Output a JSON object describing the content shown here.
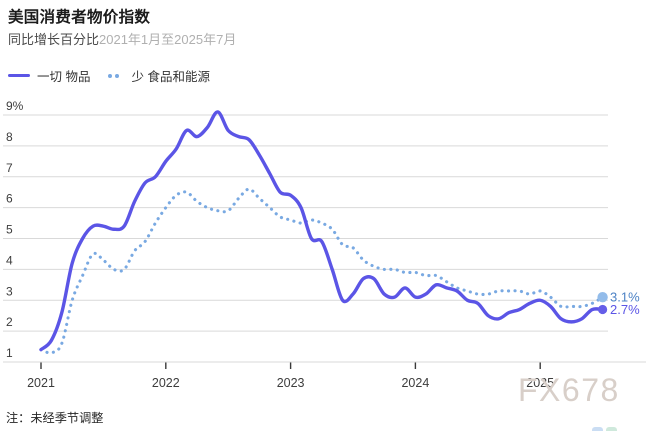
{
  "header": {
    "title": "美国消费者物价指数",
    "subtitle_prefix": "同比增长百分比",
    "subtitle_range": "2021年1月至2025年7月"
  },
  "legend": [
    {
      "label": "一切 物品",
      "style": "solid",
      "color": "#5b55e6"
    },
    {
      "label": "少 食品和能源",
      "style": "dotted",
      "color": "#79a9e2"
    }
  ],
  "chart_data": {
    "type": "line",
    "title": "美国消费者物价指数",
    "subtitle": "同比增长百分比 2021年1月至2025年7月",
    "x_start": "2021-01",
    "x_end": "2025-07",
    "x_frequency": "monthly",
    "ylabel": "同比增长百分比 (%)",
    "ylim": [
      1,
      9
    ],
    "grid": "horizontal",
    "legend_position": "top-left",
    "y_ticks": [
      {
        "value": 9,
        "label": "9%"
      },
      {
        "value": 8,
        "label": "8"
      },
      {
        "value": 7,
        "label": "7"
      },
      {
        "value": 6,
        "label": "6"
      },
      {
        "value": 5,
        "label": "5"
      },
      {
        "value": 4,
        "label": "4"
      },
      {
        "value": 3,
        "label": "3"
      },
      {
        "value": 2,
        "label": "2"
      },
      {
        "value": 1,
        "label": "1"
      }
    ],
    "x_ticks": [
      {
        "month_index": 0,
        "label": "2021"
      },
      {
        "month_index": 12,
        "label": "2022"
      },
      {
        "month_index": 24,
        "label": "2023"
      },
      {
        "month_index": 36,
        "label": "2024"
      },
      {
        "month_index": 48,
        "label": "2025"
      }
    ],
    "series": [
      {
        "name": "一切 物品",
        "style": "solid",
        "color": "#5b55e6",
        "stroke_width": 3.4,
        "values": [
          1.4,
          1.7,
          2.6,
          4.2,
          5.0,
          5.4,
          5.4,
          5.3,
          5.4,
          6.2,
          6.8,
          7.0,
          7.5,
          7.9,
          8.5,
          8.3,
          8.6,
          9.1,
          8.5,
          8.3,
          8.2,
          7.7,
          7.1,
          6.5,
          6.4,
          6.0,
          5.0,
          4.9,
          4.0,
          3.0,
          3.2,
          3.7,
          3.7,
          3.2,
          3.1,
          3.4,
          3.1,
          3.2,
          3.5,
          3.4,
          3.3,
          3.0,
          2.9,
          2.5,
          2.4,
          2.6,
          2.7,
          2.9,
          3.0,
          2.8,
          2.4,
          2.3,
          2.4,
          2.7,
          2.7
        ]
      },
      {
        "name": "少 食品和能源",
        "style": "dotted",
        "color": "#79a9e2",
        "stroke_width": 3.1,
        "values": [
          1.4,
          1.3,
          1.6,
          3.0,
          3.8,
          4.5,
          4.3,
          4.0,
          4.0,
          4.6,
          4.9,
          5.5,
          6.0,
          6.4,
          6.5,
          6.2,
          6.0,
          5.9,
          5.9,
          6.3,
          6.6,
          6.3,
          6.0,
          5.7,
          5.6,
          5.5,
          5.6,
          5.5,
          5.3,
          4.8,
          4.7,
          4.3,
          4.1,
          4.0,
          4.0,
          3.9,
          3.9,
          3.8,
          3.8,
          3.6,
          3.4,
          3.3,
          3.2,
          3.2,
          3.3,
          3.3,
          3.3,
          3.2,
          3.3,
          3.1,
          2.8,
          2.8,
          2.8,
          2.9,
          3.1
        ]
      }
    ],
    "end_labels": [
      {
        "series": "少 食品和能源",
        "text": "3.1%",
        "value": 3.1,
        "color": "#4c82c5",
        "dot_color": "#93bcea",
        "dot_radius": 5.2
      },
      {
        "series": "一切 物品",
        "text": "2.7%",
        "value": 2.7,
        "color": "#5b55e6",
        "dot_color": "#655ee8",
        "dot_radius": 4.6
      }
    ]
  },
  "note": "注：未经季节调整",
  "watermark": "FX678",
  "colors": {
    "gridline": "#d9d9d9",
    "axis_tick": "#3a3a3a",
    "axis_label": "#3d3d3d",
    "title": "#1b1b1b",
    "subtitle": "#4a4a4a",
    "subtitle_range": "#b0b0b0"
  }
}
